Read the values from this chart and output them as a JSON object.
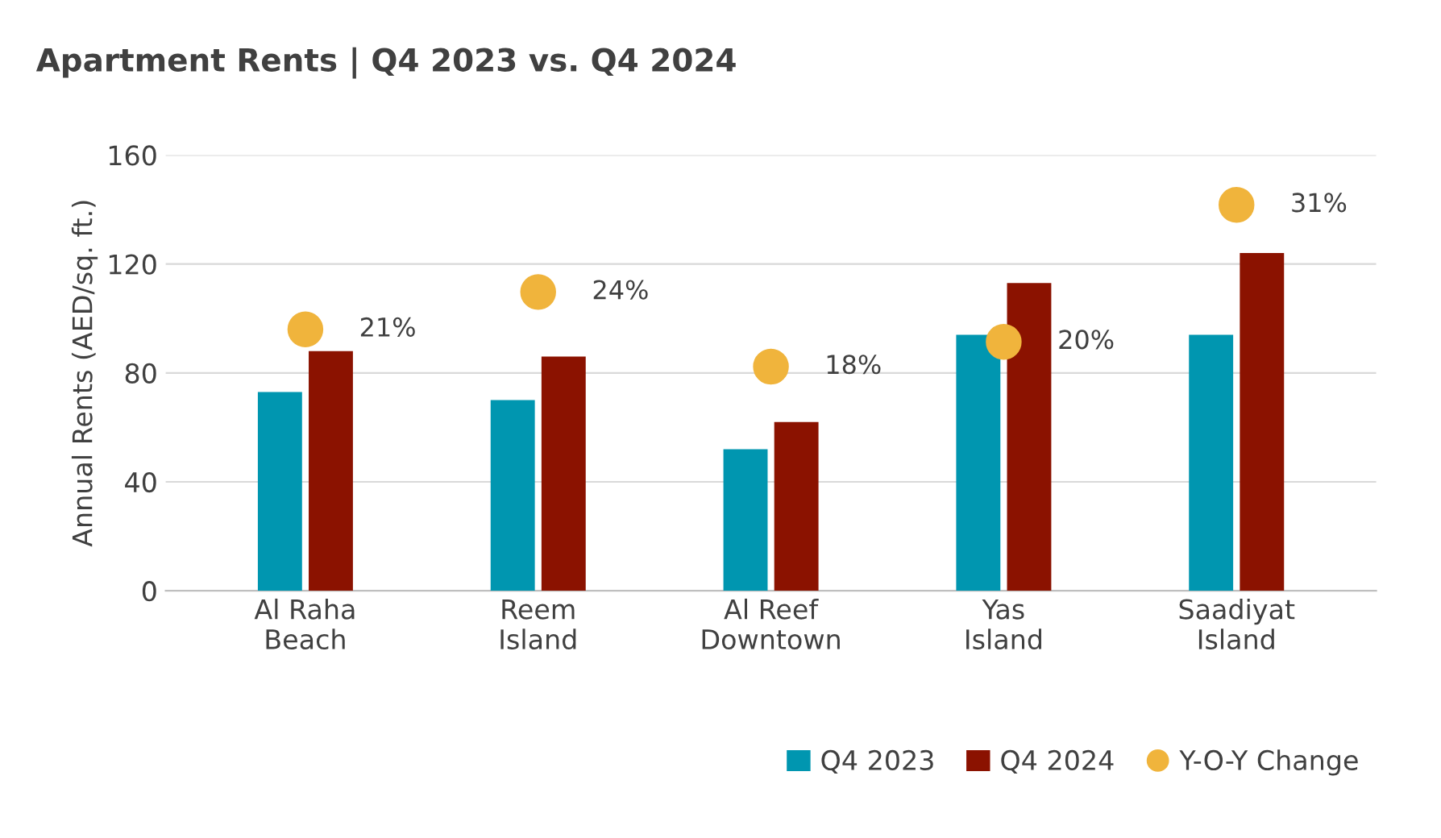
{
  "chart_data": {
    "type": "bar",
    "title": "Apartment Rents | Q4 2023 vs. Q4 2024",
    "ylabel": "Annual Rents (AED/sq. ft.)",
    "categories": [
      "Al Raha\nBeach",
      "Reem\nIsland",
      "Al Reef\nDowntown",
      "Yas\nIsland",
      "Saadiyat\nIsland"
    ],
    "series": [
      {
        "name": "Q4 2023",
        "color": "#0096b0",
        "values": [
          73,
          70,
          52,
          94,
          94
        ]
      },
      {
        "name": "Q4 2024",
        "color": "#8b1200",
        "values": [
          88,
          86,
          62,
          113,
          124
        ]
      },
      {
        "name": "Y-O-Y Change",
        "type": "scatter",
        "axis": "y2",
        "color": "#f0b43c",
        "values": [
          21,
          24,
          18,
          20,
          31
        ],
        "value_labels": [
          "21%",
          "24%",
          "18%",
          "20%",
          "31%"
        ]
      }
    ],
    "ylim": [
      0,
      160
    ],
    "yticks": [
      0,
      40,
      80,
      120,
      160
    ],
    "y2lim": [
      0,
      35
    ],
    "grid": "y",
    "legend": "bottom right",
    "marker": "circle"
  }
}
